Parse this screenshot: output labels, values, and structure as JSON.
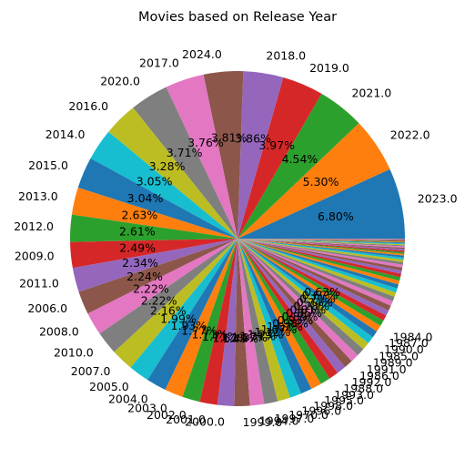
{
  "chart_data": {
    "type": "pie",
    "title": "Movies based on Release Year",
    "start_angle_deg": 0,
    "direction": "counterclockwise",
    "palette": [
      "#1f77b4",
      "#ff7f0e",
      "#2ca02c",
      "#d62728",
      "#9467bd",
      "#8c564b",
      "#e377c2",
      "#7f7f7f",
      "#bcbd22",
      "#17becf"
    ],
    "labeled_slices": [
      {
        "label": "2023.0",
        "pct": "6.80%",
        "value": 6.8
      },
      {
        "label": "2022.0",
        "pct": "5.30%",
        "value": 5.3
      },
      {
        "label": "2021.0",
        "pct": "4.54%",
        "value": 4.54
      },
      {
        "label": "2019.0",
        "pct": "3.97%",
        "value": 3.97
      },
      {
        "label": "2018.0",
        "pct": "3.86%",
        "value": 3.86
      },
      {
        "label": "2024.0",
        "pct": "3.81%",
        "value": 3.81
      },
      {
        "label": "2017.0",
        "pct": "3.76%",
        "value": 3.76
      },
      {
        "label": "2020.0",
        "pct": "3.71%",
        "value": 3.71
      },
      {
        "label": "2016.0",
        "pct": "3.28%",
        "value": 3.28
      },
      {
        "label": "2014.0",
        "pct": "3.05%",
        "value": 3.05
      },
      {
        "label": "2015.0",
        "pct": "3.04%",
        "value": 3.04
      },
      {
        "label": "2013.0",
        "pct": "2.63%",
        "value": 2.63
      },
      {
        "label": "2012.0",
        "pct": "2.61%",
        "value": 2.61
      },
      {
        "label": "2009.0",
        "pct": "2.49%",
        "value": 2.49
      },
      {
        "label": "2011.0",
        "pct": "2.34%",
        "value": 2.34
      },
      {
        "label": "2006.0",
        "pct": "2.24%",
        "value": 2.24
      },
      {
        "label": "2008.0",
        "pct": "2.22%",
        "value": 2.22
      },
      {
        "label": "2010.0",
        "pct": "2.22%",
        "value": 2.22
      },
      {
        "label": "2007.0",
        "pct": "2.16%",
        "value": 2.16
      },
      {
        "label": "2005.0",
        "pct": "1.99%",
        "value": 1.99
      },
      {
        "label": "2004.0",
        "pct": "1.93%",
        "value": 1.93
      },
      {
        "label": "2003.0",
        "pct": "1.77%",
        "value": 1.77
      },
      {
        "label": "2002.0",
        "pct": "1.71%",
        "value": 1.71
      },
      {
        "label": "2001.0",
        "pct": "1.71%",
        "value": 1.71
      },
      {
        "label": "2000.0",
        "pct": "1.62%",
        "value": 1.62
      },
      {
        "label": "1999.0",
        "pct": "1.49%",
        "value": 1.49
      },
      {
        "label": "1994.0",
        "pct": "1.37%",
        "value": 1.37
      },
      {
        "label": "1997.0",
        "pct": "1.31%",
        "value": 1.31
      },
      {
        "label": "1970.0",
        "pct": "1.23%",
        "value": 1.23
      },
      {
        "label": "1996.0",
        "pct": "1.12%",
        "value": 1.12
      },
      {
        "label": "1998.0",
        "pct": "1.07%",
        "value": 1.07
      },
      {
        "label": "1995.0",
        "pct": "1.02%",
        "value": 1.02
      },
      {
        "label": "1993.0",
        "pct": "0.98%",
        "value": 0.98
      },
      {
        "label": "1988.0",
        "pct": "0.93%",
        "value": 0.93
      },
      {
        "label": "1992.0",
        "pct": "0.89%",
        "value": 0.89
      },
      {
        "label": "1986.0",
        "pct": "0.85%",
        "value": 0.85
      },
      {
        "label": "1991.0",
        "pct": "0.81%",
        "value": 0.81
      },
      {
        "label": "1989.0",
        "pct": "0.78%",
        "value": 0.78
      },
      {
        "label": "1985.0",
        "pct": "0.74%",
        "value": 0.74
      },
      {
        "label": "1990.0",
        "pct": "0.71%",
        "value": 0.71
      },
      {
        "label": "1987.0",
        "pct": "0.67%",
        "value": 0.67
      },
      {
        "label": "1984.0",
        "pct": "0.63%",
        "value": 0.63
      }
    ],
    "unlabeled_slices": [
      0.58,
      0.55,
      0.52,
      0.5,
      0.47,
      0.45,
      0.43,
      0.41,
      0.39,
      0.37,
      0.35,
      0.33,
      0.31,
      0.29,
      0.27,
      0.25,
      0.23,
      0.21,
      0.19,
      0.17,
      0.16,
      0.15,
      0.14,
      0.13,
      0.12,
      0.11,
      0.1,
      0.09,
      0.08,
      0.07,
      0.06,
      0.06,
      0.05,
      0.05,
      0.04,
      0.04
    ]
  }
}
